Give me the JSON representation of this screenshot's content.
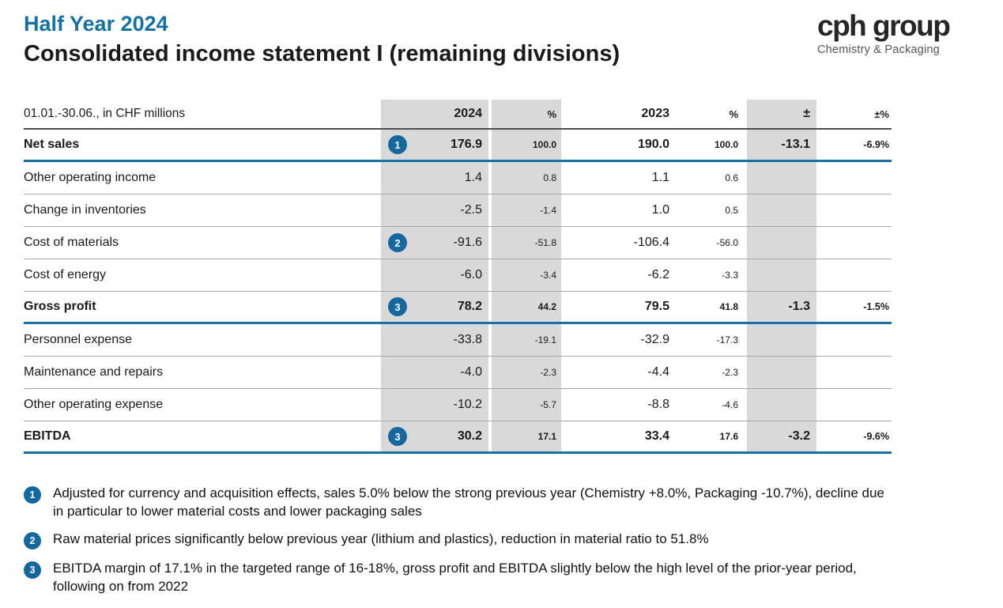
{
  "header": {
    "title_line1": "Half Year 2024",
    "title_line2": "Consolidated income statement I (remaining divisions)",
    "logo_text": "cph group",
    "logo_subtitle": "Chemistry & Packaging"
  },
  "table": {
    "period_label": "01.01.-30.06., in CHF millions",
    "columns": {
      "y2024": "2024",
      "pct1": "%",
      "y2023": "2023",
      "pct2": "%",
      "delta": "±",
      "delta_pct": "±%"
    },
    "rows": [
      {
        "label": "Net sales",
        "badge": "1",
        "v2024": "176.9",
        "p2024": "100.0",
        "v2023": "190.0",
        "p2023": "100.0",
        "delta": "-13.1",
        "delta_pct": "-6.9%"
      },
      {
        "label": "Other operating income",
        "v2024": "1.4",
        "p2024": "0.8",
        "v2023": "1.1",
        "p2023": "0.6",
        "delta": "",
        "delta_pct": ""
      },
      {
        "label": "Change in inventories",
        "v2024": "-2.5",
        "p2024": "-1.4",
        "v2023": "1.0",
        "p2023": "0.5",
        "delta": "",
        "delta_pct": ""
      },
      {
        "label": "Cost of materials",
        "badge": "2",
        "v2024": "-91.6",
        "p2024": "-51.8",
        "v2023": "-106.4",
        "p2023": "-56.0",
        "delta": "",
        "delta_pct": ""
      },
      {
        "label": "Cost of energy",
        "v2024": "-6.0",
        "p2024": "-3.4",
        "v2023": "-6.2",
        "p2023": "-3.3",
        "delta": "",
        "delta_pct": ""
      },
      {
        "label": "Gross profit",
        "badge": "3",
        "v2024": "78.2",
        "p2024": "44.2",
        "v2023": "79.5",
        "p2023": "41.8",
        "delta": "-1.3",
        "delta_pct": "-1.5%"
      },
      {
        "label": "Personnel expense",
        "v2024": "-33.8",
        "p2024": "-19.1",
        "v2023": "-32.9",
        "p2023": "-17.3",
        "delta": "",
        "delta_pct": ""
      },
      {
        "label": "Maintenance and repairs",
        "v2024": "-4.0",
        "p2024": "-2.3",
        "v2023": "-4.4",
        "p2023": "-2.3",
        "delta": "",
        "delta_pct": ""
      },
      {
        "label": "Other operating expense",
        "v2024": "-10.2",
        "p2024": "-5.7",
        "v2023": "-8.8",
        "p2023": "-4.6",
        "delta": "",
        "delta_pct": ""
      },
      {
        "label": "EBITDA",
        "badge": "3",
        "v2024": "30.2",
        "p2024": "17.1",
        "v2023": "33.4",
        "p2023": "17.6",
        "delta": "-3.2",
        "delta_pct": "-9.6%"
      }
    ]
  },
  "notes": [
    {
      "num": "1",
      "text": "Adjusted for currency and acquisition effects, sales 5.0% below the strong previous year (Chemistry +8.0%, Packaging -10.7%), decline due in particular to lower material costs and lower packaging sales"
    },
    {
      "num": "2",
      "text": "Raw material prices significantly below previous year (lithium and plastics), reduction in material ratio to 51.8%"
    },
    {
      "num": "3",
      "text": "EBITDA margin of 17.1% in the targeted range of 16-18%, gross profit and EBITDA slightly below the high level of the prior-year period, following on from 2022"
    }
  ],
  "colors": {
    "accent_blue": "#1471a6",
    "badge_blue": "#15689e",
    "rule_blue": "#1b6fa5",
    "column_gray": "#d9d9d9"
  }
}
